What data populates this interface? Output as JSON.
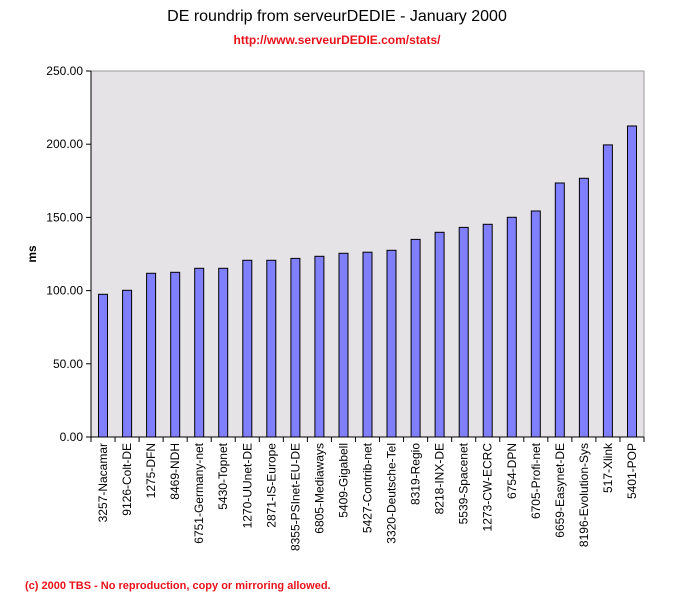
{
  "chart_data": {
    "type": "bar",
    "title": "DE roundrip from serveurDEDIE - January 2000",
    "subtitle": "http://www.serveurDEDIE.com/stats/",
    "xlabel": "",
    "ylabel": "ms",
    "ylim": [
      0,
      250
    ],
    "yticks": [
      0,
      50,
      100,
      150,
      200,
      250
    ],
    "ytick_labels": [
      "0.00",
      "50.00",
      "100.00",
      "150.00",
      "200.00",
      "250.00"
    ],
    "grid": false,
    "legend": "none",
    "categories": [
      "3257-Nacamar",
      "9126-Colt-DE",
      "1275-DFN",
      "8469-NDH",
      "6751-Germany-net",
      "5430-Topnet",
      "1270-UUnet-DE",
      "2871-IS-Europe",
      "8355-PSInet-EU-DE",
      "6805-Mediaways",
      "5409-Gigabell",
      "5427-Contrib-net",
      "3320-Deutsche-Tel",
      "8319-Regio",
      "8218-INX-DE",
      "5539-Spacenet",
      "1273-CW-ECRC",
      "6754-DPN",
      "6705-Profi-net",
      "6659-Easynet-DE",
      "8196-Evolution-Sys",
      "517-Xlink",
      "5401-POP"
    ],
    "values": [
      97.5,
      100.2,
      111.8,
      112.5,
      115.2,
      115.2,
      120.7,
      120.7,
      122.0,
      123.4,
      125.5,
      126.2,
      127.5,
      135.0,
      139.8,
      143.2,
      145.3,
      150.1,
      154.4,
      173.5,
      176.7,
      199.5,
      212.4
    ],
    "colors": {
      "bar": "#8080ff",
      "plot_bg": "#e6e3e6",
      "accent": "#e8121b"
    }
  },
  "footer": "(c) 2000 TBS - No reproduction, copy or mirroring allowed."
}
